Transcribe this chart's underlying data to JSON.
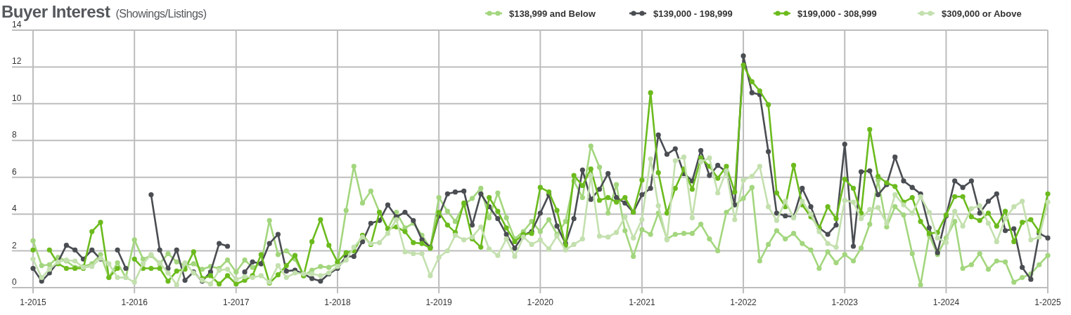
{
  "chart_data": {
    "type": "line",
    "title": "Buyer Interest",
    "subtitle": "(Showings/Listings)",
    "x": [
      "2015-01",
      "2015-02",
      "2015-03",
      "2015-04",
      "2015-05",
      "2015-06",
      "2015-07",
      "2015-08",
      "2015-09",
      "2015-10",
      "2015-11",
      "2015-12",
      "2016-01",
      "2016-02",
      "2016-03",
      "2016-04",
      "2016-05",
      "2016-06",
      "2016-07",
      "2016-08",
      "2016-09",
      "2016-10",
      "2016-11",
      "2016-12",
      "2017-01",
      "2017-02",
      "2017-03",
      "2017-04",
      "2017-05",
      "2017-06",
      "2017-07",
      "2017-08",
      "2017-09",
      "2017-10",
      "2017-11",
      "2017-12",
      "2018-01",
      "2018-02",
      "2018-03",
      "2018-04",
      "2018-05",
      "2018-06",
      "2018-07",
      "2018-08",
      "2018-09",
      "2018-10",
      "2018-11",
      "2018-12",
      "2019-01",
      "2019-02",
      "2019-03",
      "2019-04",
      "2019-05",
      "2019-06",
      "2019-07",
      "2019-08",
      "2019-09",
      "2019-10",
      "2019-11",
      "2019-12",
      "2020-01",
      "2020-02",
      "2020-03",
      "2020-04",
      "2020-05",
      "2020-06",
      "2020-07",
      "2020-08",
      "2020-09",
      "2020-10",
      "2020-11",
      "2020-12",
      "2021-01",
      "2021-02",
      "2021-03",
      "2021-04",
      "2021-05",
      "2021-06",
      "2021-07",
      "2021-08",
      "2021-09",
      "2021-10",
      "2021-11",
      "2021-12",
      "2022-01",
      "2022-02",
      "2022-03",
      "2022-04",
      "2022-05",
      "2022-06",
      "2022-07",
      "2022-08",
      "2022-09",
      "2022-10",
      "2022-11",
      "2022-12",
      "2023-01",
      "2023-02",
      "2023-03",
      "2023-04",
      "2023-05",
      "2023-06",
      "2023-07",
      "2023-08",
      "2023-09",
      "2023-10",
      "2023-11",
      "2023-12",
      "2024-01",
      "2024-02",
      "2024-03",
      "2024-04",
      "2024-05",
      "2024-06",
      "2024-07",
      "2024-08",
      "2024-09",
      "2024-10",
      "2024-11",
      "2024-12",
      "2025-01"
    ],
    "series": [
      {
        "name": "$138,999 and Below",
        "color": "#a3d67e",
        "values": [
          2.55,
          1.2,
          1.25,
          1.65,
          1.45,
          1.1,
          1.15,
          1.3,
          1.8,
          0.55,
          1.35,
          0.55,
          2.6,
          1.55,
          1.75,
          1.3,
          1.85,
          1.4,
          1.2,
          1.3,
          1.0,
          1.15,
          1.05,
          1.5,
          0.85,
          1.5,
          1.1,
          1.3,
          3.65,
          1.8,
          2.0,
          1.55,
          0.65,
          0.95,
          1.15,
          1.1,
          1.3,
          4.2,
          6.6,
          4.6,
          5.25,
          4.1,
          3.2,
          4.1,
          3.25,
          3.5,
          2.85,
          2.15,
          4.9,
          4.15,
          3.6,
          4.5,
          4.85,
          5.4,
          3.8,
          5.15,
          3.8,
          2.65,
          3.05,
          3.6,
          3.05,
          3.7,
          2.9,
          3.6,
          5.8,
          4.9,
          7.7,
          6.55,
          4.05,
          5.6,
          3.1,
          1.7,
          3.15,
          2.9,
          4.05,
          2.65,
          2.9,
          2.95,
          2.95,
          3.45,
          2.65,
          2.0,
          4.1,
          4.5,
          4.85,
          5.45,
          1.45,
          2.35,
          3.1,
          2.65,
          2.95,
          2.4,
          2.05,
          1.05,
          1.95,
          1.35,
          1.8,
          1.45,
          2.15,
          3.45,
          5.85,
          3.3,
          4.4,
          3.95,
          1.85,
          0.15,
          2.85,
          1.8,
          2.7,
          3.6,
          1.05,
          1.25,
          1.85,
          1.0,
          1.45,
          1.4,
          0.3,
          0.55,
          0.75,
          1.25,
          1.75
        ]
      },
      {
        "name": "$139,000 - 198,999",
        "color": "#4a4d52",
        "values": [
          1.05,
          0.35,
          0.8,
          1.4,
          2.3,
          2.05,
          1.55,
          2.05,
          1.55,
          null,
          2.05,
          1.05,
          null,
          null,
          5.05,
          2.05,
          1.05,
          2.05,
          0.4,
          0.85,
          0.35,
          0.85,
          2.4,
          2.25,
          null,
          0.85,
          1.4,
          1.3,
          2.4,
          2.9,
          0.9,
          0.95,
          0.75,
          0.5,
          0.35,
          0.75,
          1.05,
          1.7,
          1.7,
          2.5,
          3.5,
          3.65,
          4.5,
          3.85,
          4.1,
          3.65,
          2.6,
          2.2,
          3.9,
          5.1,
          5.2,
          5.25,
          3.4,
          5.1,
          4.4,
          3.75,
          2.9,
          2.15,
          2.85,
          3.05,
          4.05,
          5.05,
          3.35,
          2.4,
          3.75,
          6.4,
          4.8,
          5.35,
          6.2,
          4.9,
          4.6,
          4.1,
          5.05,
          5.4,
          8.3,
          7.25,
          7.55,
          6.2,
          5.8,
          7.45,
          6.1,
          6.65,
          6.3,
          4.5,
          12.6,
          10.6,
          10.5,
          7.4,
          4.05,
          3.9,
          3.85,
          5.4,
          4.4,
          3.25,
          2.9,
          3.4,
          7.8,
          2.25,
          6.3,
          6.35,
          5.05,
          5.6,
          7.1,
          5.8,
          5.45,
          5.1,
          3.25,
          1.9,
          3.9,
          5.8,
          5.45,
          5.8,
          4.05,
          4.7,
          5.1,
          3.1,
          3.2,
          1.1,
          0.45,
          2.95,
          2.7
        ]
      },
      {
        "name": "$199,000 - 308,999",
        "color": "#6cbb1e",
        "values": [
          2.05,
          null,
          2.05,
          1.3,
          1.05,
          1.05,
          1.05,
          3.05,
          3.55,
          0.55,
          1.05,
          null,
          1.55,
          1.05,
          1.05,
          1.05,
          0.35,
          0.9,
          1.0,
          1.95,
          0.5,
          0.65,
          0.2,
          0.65,
          0.2,
          0.4,
          0.65,
          1.8,
          0.25,
          0.7,
          1.2,
          1.75,
          0.65,
          2.5,
          3.7,
          2.3,
          1.4,
          1.9,
          2.0,
          2.85,
          2.35,
          4.1,
          3.2,
          3.3,
          3.05,
          2.45,
          2.4,
          2.15,
          4.1,
          3.4,
          3.0,
          4.6,
          2.65,
          2.2,
          4.9,
          4.15,
          3.25,
          2.5,
          2.9,
          2.95,
          5.45,
          5.2,
          4.2,
          2.3,
          6.1,
          5.55,
          6.45,
          4.75,
          4.9,
          4.65,
          4.9,
          4.1,
          5.85,
          10.6,
          6.25,
          4.05,
          5.4,
          6.45,
          5.35,
          7.05,
          6.6,
          5.95,
          6.6,
          5.2,
          12.1,
          11.2,
          10.7,
          9.95,
          5.15,
          4.4,
          6.65,
          4.5,
          3.85,
          3.25,
          4.4,
          3.75,
          5.9,
          5.4,
          4.05,
          8.6,
          6.05,
          5.7,
          5.5,
          4.65,
          4.9,
          3.6,
          2.95,
          3.0,
          3.95,
          4.95,
          4.95,
          3.85,
          3.65,
          4.05,
          3.35,
          4.15,
          2.5,
          3.55,
          3.7,
          3.05,
          5.1
        ]
      },
      {
        "name": "$309,000 or Above",
        "color": "#c3e0ae",
        "values": [
          1.55,
          0.55,
          1.0,
          1.4,
          1.5,
          1.45,
          1.1,
          1.15,
          1.6,
          1.3,
          0.55,
          0.55,
          0.3,
          1.3,
          1.8,
          1.35,
          0.8,
          0.15,
          1.35,
          0.8,
          0.4,
          0.2,
          0.95,
          1.0,
          0.45,
          0.6,
          0.55,
          0.65,
          0.3,
          1.2,
          0.55,
          0.8,
          0.75,
          0.75,
          0.65,
          0.8,
          1.15,
          1.5,
          2.2,
          2.75,
          2.4,
          2.45,
          2.95,
          3.7,
          1.95,
          1.85,
          1.85,
          0.65,
          1.65,
          2.0,
          2.85,
          2.6,
          2.75,
          3.3,
          2.1,
          1.75,
          2.65,
          1.7,
          2.75,
          2.35,
          2.6,
          2.1,
          2.8,
          2.05,
          2.35,
          2.65,
          6.1,
          2.8,
          2.75,
          3.0,
          3.85,
          2.7,
          3.7,
          7.0,
          4.45,
          2.6,
          6.9,
          7.1,
          3.8,
          6.85,
          7.05,
          5.15,
          6.35,
          3.7,
          5.85,
          6.05,
          6.6,
          4.4,
          3.65,
          4.7,
          3.8,
          4.7,
          4.0,
          3.05,
          2.4,
          2.2,
          4.75,
          4.65,
          3.75,
          4.25,
          4.35,
          3.5,
          5.05,
          4.5,
          4.05,
          4.95,
          4.1,
          2.7,
          2.45,
          4.15,
          3.35,
          4.3,
          4.45,
          3.5,
          2.5,
          3.75,
          4.4,
          4.7,
          2.6,
          2.75,
          4.65
        ]
      }
    ],
    "xlim": [
      "2015-01",
      "2025-01"
    ],
    "xticks": [
      {
        "value": "2015-01",
        "label": "1-2015"
      },
      {
        "value": "2016-01",
        "label": "1-2016"
      },
      {
        "value": "2017-01",
        "label": "1-2017"
      },
      {
        "value": "2018-01",
        "label": "1-2018"
      },
      {
        "value": "2019-01",
        "label": "1-2019"
      },
      {
        "value": "2020-01",
        "label": "1-2020"
      },
      {
        "value": "2021-01",
        "label": "1-2021"
      },
      {
        "value": "2022-01",
        "label": "1-2022"
      },
      {
        "value": "2023-01",
        "label": "1-2023"
      },
      {
        "value": "2024-01",
        "label": "1-2024"
      },
      {
        "value": "2025-01",
        "label": "1-2025"
      }
    ],
    "ylim": [
      0,
      14
    ],
    "yticks": [
      0,
      2,
      4,
      6,
      8,
      10,
      12,
      14
    ],
    "grid": true,
    "legend": "top right",
    "marker": "circle"
  }
}
